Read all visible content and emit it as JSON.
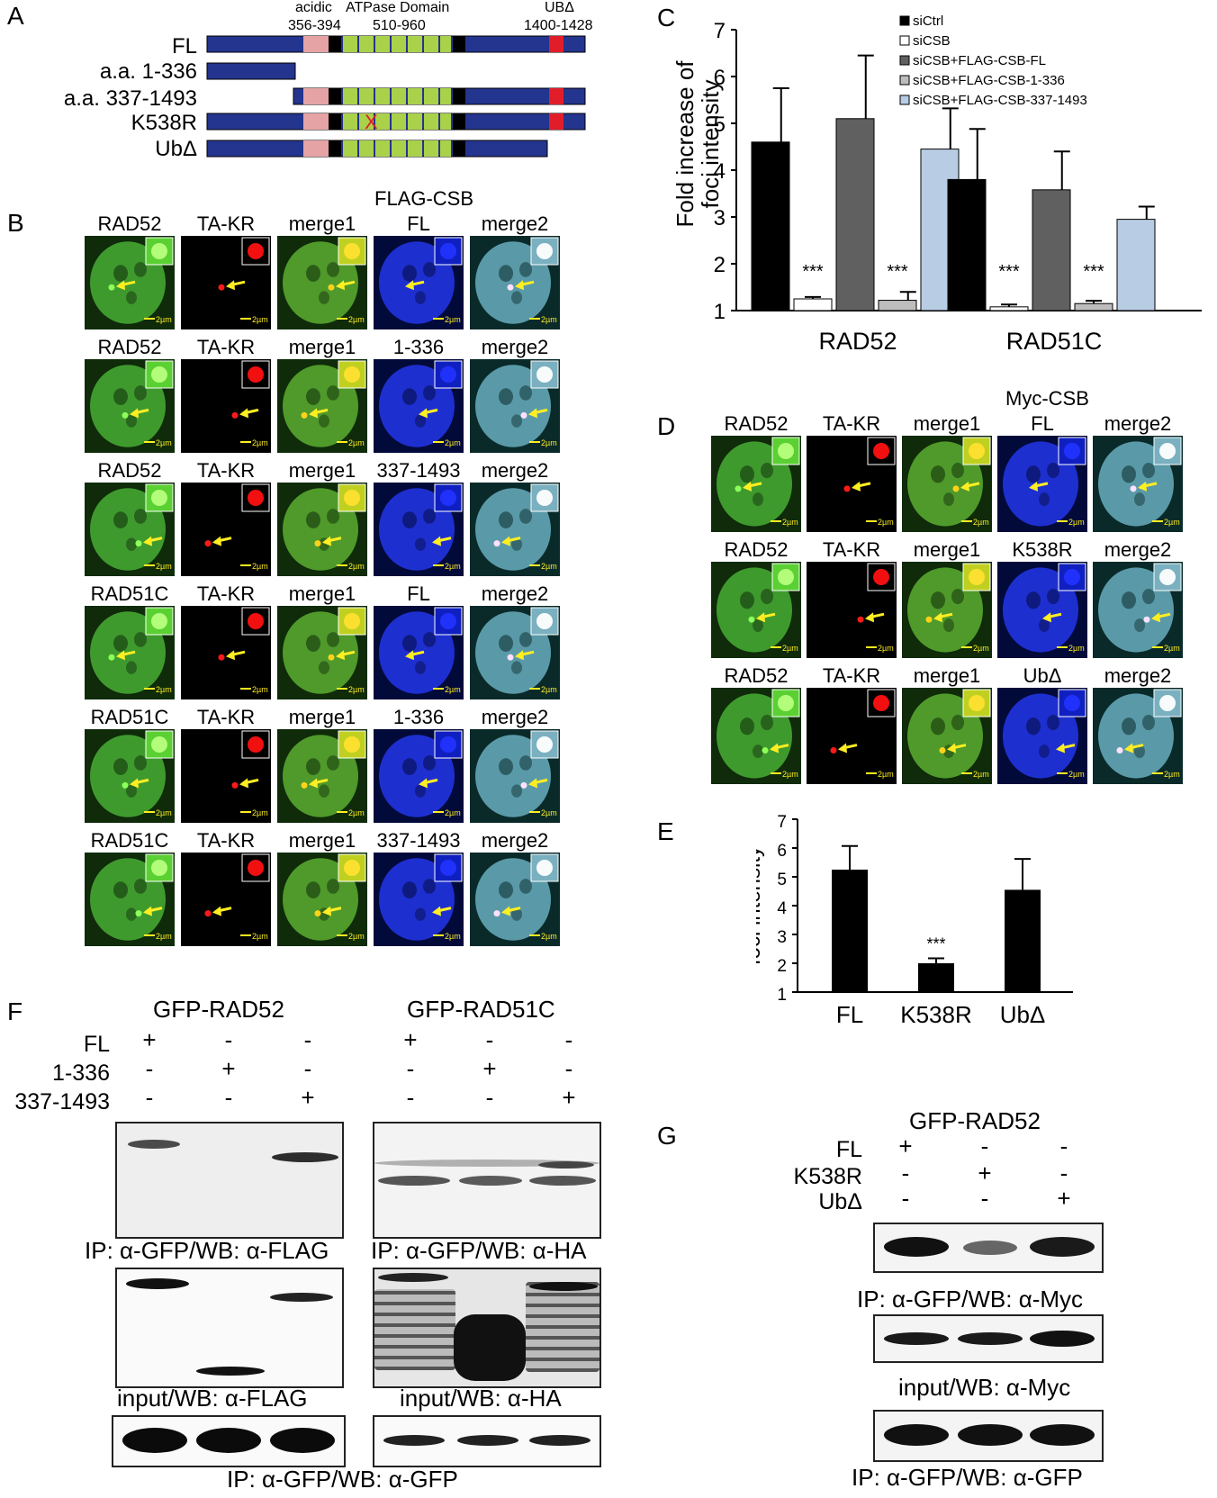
{
  "panel_letters": [
    "A",
    "B",
    "C",
    "D",
    "E",
    "F",
    "G"
  ],
  "panelA": {
    "domain_labels": {
      "acidic": "acidic",
      "acidic_range": "356-394",
      "atpase": "ATPase Domain",
      "atpase_range": "510-960",
      "ub": "UBΔ",
      "ub_range": "1400-1428"
    },
    "constructs": [
      "FL",
      "a.a. 1-336",
      "a.a. 337-1493",
      "K538R",
      "UbΔ"
    ],
    "mutation_mark": "X"
  },
  "panelB": {
    "header": "FLAG-CSB",
    "rows": [
      [
        "RAD52",
        "TA-KR",
        "merge1",
        "FL",
        "merge2"
      ],
      [
        "RAD52",
        "TA-KR",
        "merge1",
        "1-336",
        "merge2"
      ],
      [
        "RAD52",
        "TA-KR",
        "merge1",
        "337-1493",
        "merge2"
      ],
      [
        "RAD51C",
        "TA-KR",
        "merge1",
        "FL",
        "merge2"
      ],
      [
        "RAD51C",
        "TA-KR",
        "merge1",
        "1-336",
        "merge2"
      ],
      [
        "RAD51C",
        "TA-KR",
        "merge1",
        "337-1493",
        "merge2"
      ]
    ],
    "scale_label": "2µm"
  },
  "panelD": {
    "header": "Myc-CSB",
    "rows": [
      [
        "RAD52",
        "TA-KR",
        "merge1",
        "FL",
        "merge2"
      ],
      [
        "RAD52",
        "TA-KR",
        "merge1",
        "K538R",
        "merge2"
      ],
      [
        "RAD52",
        "TA-KR",
        "merge1",
        "UbΔ",
        "merge2"
      ]
    ],
    "scale_label": "2µm"
  },
  "colors": {
    "bar_blue": "#24358f",
    "acidic": "#e5a3a6",
    "atpase": "#a9d14a",
    "ub": "#e11d2a",
    "green_cell": "#3f9a2e",
    "blue_cell": "#1e2fd0",
    "red_focus": "#ff1a1a",
    "arrow": "#ffee22"
  },
  "chart_data": [
    {
      "panel": "C",
      "type": "bar",
      "ylabel": "Fold increase of foci intensity",
      "ylim": [
        1,
        7
      ],
      "yticks": [
        1,
        2,
        3,
        4,
        5,
        6,
        7
      ],
      "categories": [
        "RAD52",
        "RAD51C"
      ],
      "series": [
        {
          "name": "siCtrl",
          "color": "#000000",
          "values": [
            4.6,
            3.8
          ],
          "errors": [
            1.15,
            1.08
          ]
        },
        {
          "name": "siCSB",
          "color": "#ffffff",
          "values": [
            1.25,
            1.08
          ],
          "errors": [
            0.04,
            0.05
          ]
        },
        {
          "name": "siCSB+FLAG-CSB-FL",
          "color": "#606060",
          "values": [
            5.1,
            3.58
          ],
          "errors": [
            1.35,
            0.82
          ]
        },
        {
          "name": "siCSB+FLAG-CSB-1-336",
          "color": "#bdbdbd",
          "values": [
            1.22,
            1.15
          ],
          "errors": [
            0.18,
            0.06
          ]
        },
        {
          "name": "siCSB+FLAG-CSB-337-1493",
          "color": "#b8cce4",
          "values": [
            4.45,
            2.95
          ],
          "errors": [
            0.87,
            0.27
          ]
        }
      ],
      "annotations": [
        {
          "text": "***",
          "category": "RAD52",
          "series": "siCSB"
        },
        {
          "text": "***",
          "category": "RAD52",
          "series": "siCSB+FLAG-CSB-1-336"
        },
        {
          "text": "***",
          "category": "RAD51C",
          "series": "siCSB"
        },
        {
          "text": "***",
          "category": "RAD51C",
          "series": "siCSB+FLAG-CSB-1-336"
        }
      ],
      "legend_position": "top-right"
    },
    {
      "panel": "E",
      "type": "bar",
      "ylabel": "Fold increase of foci intensity",
      "ylim": [
        1,
        7
      ],
      "yticks": [
        1,
        2,
        3,
        4,
        5,
        6,
        7
      ],
      "categories": [
        "FL",
        "K538R",
        "UbΔ"
      ],
      "values": [
        5.25,
        2.0,
        4.55
      ],
      "errors": [
        0.82,
        0.17,
        1.07
      ],
      "annotations": [
        {
          "text": "***",
          "category": "K538R"
        }
      ]
    }
  ],
  "panelF": {
    "group1_title": "GFP-RAD52",
    "group2_title": "GFP-RAD51C",
    "row_labels": [
      "FL",
      "1-336",
      "337-1493"
    ],
    "signs": [
      [
        "+",
        "-",
        "-"
      ],
      [
        "-",
        "+",
        "-"
      ],
      [
        "-",
        "-",
        "+"
      ]
    ],
    "blot_labels": [
      "IP: α-GFP/WB: α-FLAG",
      "IP: α-GFP/WB: α-HA",
      "input/WB: α-FLAG",
      "input/WB: α-HA",
      "IP: α-GFP/WB: α-GFP"
    ]
  },
  "panelG": {
    "title": "GFP-RAD52",
    "row_labels": [
      "FL",
      "K538R",
      "UbΔ"
    ],
    "signs": [
      [
        "+",
        "-",
        "-"
      ],
      [
        "-",
        "+",
        "-"
      ],
      [
        "-",
        "-",
        "+"
      ]
    ],
    "blot_labels": [
      "IP: α-GFP/WB: α-Myc",
      "input/WB: α-Myc",
      "IP: α-GFP/WB: α-GFP"
    ]
  }
}
